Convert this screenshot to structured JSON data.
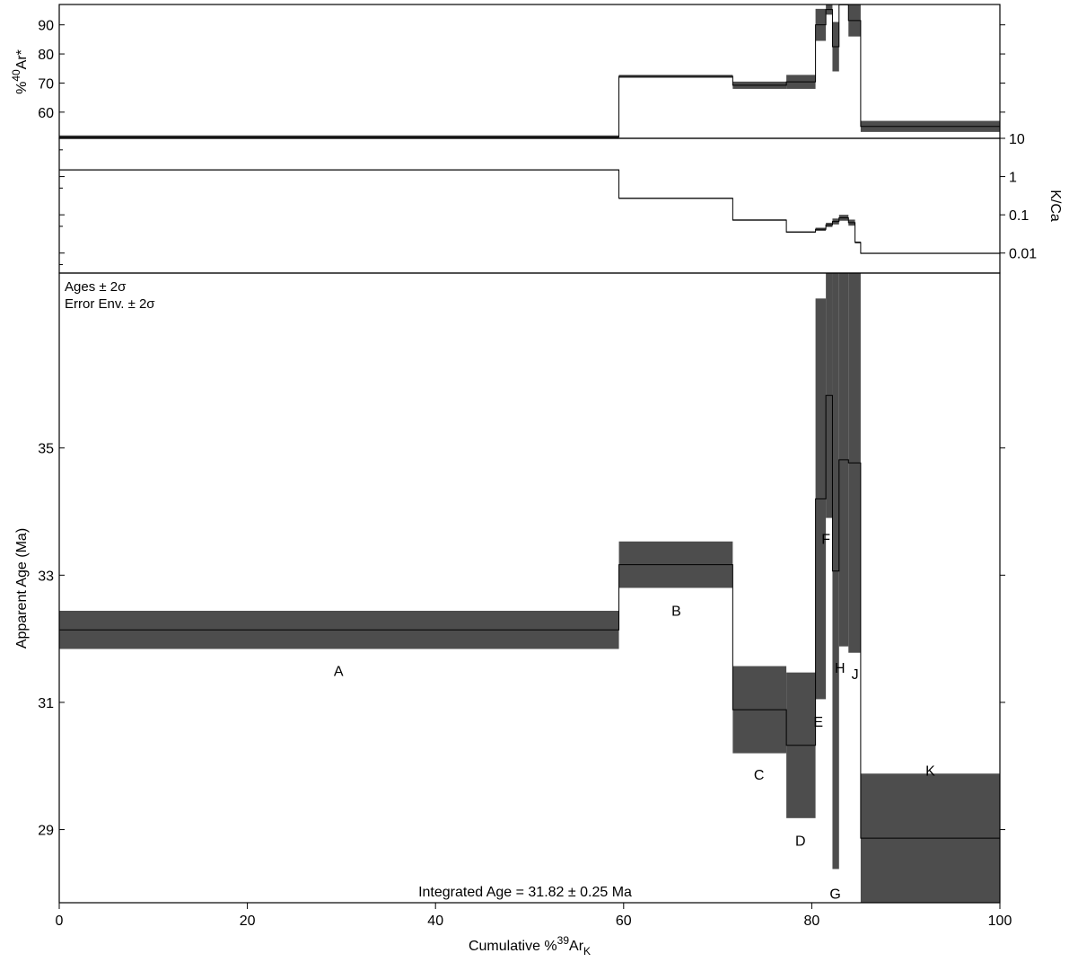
{
  "colors": {
    "band": "#4d4d4d",
    "line": "#000000",
    "background": "#ffffff"
  },
  "chart_data": [
    {
      "name": "radiogenic-argon-panel",
      "type": "step",
      "ylabel_prefix": "%",
      "ylabel_sup": "40",
      "ylabel_main": "Ar*",
      "ylim": [
        51.0,
        97.0
      ],
      "ytick_values": [
        60,
        70,
        80,
        90
      ],
      "ytick_labels": [
        "60",
        "70",
        "80",
        "90"
      ],
      "steps": [
        {
          "x0": 0.0,
          "x1": 59.5,
          "y0": 51.0,
          "y1": 52.0
        },
        {
          "x0": 59.5,
          "x1": 71.6,
          "y0": 71.8,
          "y1": 72.8
        },
        {
          "x0": 71.6,
          "x1": 77.3,
          "y0": 68.0,
          "y1": 70.5
        },
        {
          "x0": 77.3,
          "x1": 80.4,
          "y0": 68.0,
          "y1": 72.8
        },
        {
          "x0": 80.4,
          "x1": 81.5,
          "y0": 84.5,
          "y1": 95.5
        },
        {
          "x0": 81.5,
          "x1": 82.2,
          "y0": 93.5,
          "y1": 97.0
        },
        {
          "x0": 82.2,
          "x1": 82.9,
          "y0": 74.0,
          "y1": 91.0
        },
        {
          "x0": 82.9,
          "x1": 83.9,
          "y0": 97.0,
          "y1": 97.0
        },
        {
          "x0": 83.9,
          "x1": 85.2,
          "y0": 86.0,
          "y1": 97.0
        },
        {
          "x0": 85.2,
          "x1": 100.0,
          "y0": 53.2,
          "y1": 57.0
        }
      ]
    },
    {
      "name": "k-ca-panel",
      "type": "step",
      "ylabel": "K/Ca",
      "yscale": "log",
      "ylim": [
        0.003,
        10
      ],
      "ytick_values": [
        10,
        1,
        0.1,
        0.01
      ],
      "ytick_labels": [
        "10",
        "1",
        "0.1",
        "0.01"
      ],
      "steps": [
        {
          "x0": 0.0,
          "x1": 59.5,
          "y0": 1.45,
          "y1": 1.55
        },
        {
          "x0": 59.5,
          "x1": 71.6,
          "y0": 0.26,
          "y1": 0.28
        },
        {
          "x0": 71.6,
          "x1": 77.3,
          "y0": 0.07,
          "y1": 0.076
        },
        {
          "x0": 77.3,
          "x1": 80.4,
          "y0": 0.034,
          "y1": 0.037
        },
        {
          "x0": 80.4,
          "x1": 81.5,
          "y0": 0.038,
          "y1": 0.046
        },
        {
          "x0": 81.5,
          "x1": 82.2,
          "y0": 0.048,
          "y1": 0.062
        },
        {
          "x0": 82.2,
          "x1": 82.9,
          "y0": 0.056,
          "y1": 0.08
        },
        {
          "x0": 82.9,
          "x1": 83.9,
          "y0": 0.07,
          "y1": 0.1
        },
        {
          "x0": 83.9,
          "x1": 84.6,
          "y0": 0.052,
          "y1": 0.075
        },
        {
          "x0": 84.6,
          "x1": 85.2,
          "y0": 0.018,
          "y1": 0.02
        },
        {
          "x0": 85.2,
          "x1": 100.0,
          "y0": 0.0095,
          "y1": 0.0102
        }
      ]
    },
    {
      "name": "age-spectrum-panel",
      "type": "step",
      "title": "",
      "annotations": [
        "Ages ± 2σ",
        "Error Env. ± 2σ"
      ],
      "integrated_age": "Integrated Age = 31.82 ± 0.25 Ma",
      "xlabel_prefix": "Cumulative %",
      "xlabel_sup": "39",
      "xlabel_main": "Ar",
      "xlabel_sub": "K",
      "ylabel": "Apparent Age (Ma)",
      "xlim": [
        0,
        100
      ],
      "ylim": [
        27.85,
        37.75
      ],
      "xtick_values": [
        0,
        20,
        40,
        60,
        80,
        100
      ],
      "xtick_labels": [
        "0",
        "20",
        "40",
        "60",
        "80",
        "100"
      ],
      "ytick_values": [
        29,
        31,
        33,
        35
      ],
      "ytick_labels": [
        "29",
        "31",
        "33",
        "35"
      ],
      "steps": [
        {
          "label": "A",
          "x0": 0.0,
          "x1": 59.5,
          "y0": 31.84,
          "y1": 32.44,
          "label_x": 29.7,
          "label_y": 31.5
        },
        {
          "label": "B",
          "x0": 59.5,
          "x1": 71.6,
          "y0": 32.8,
          "y1": 33.53,
          "label_x": 65.6,
          "label_y": 32.45
        },
        {
          "label": "C",
          "x0": 71.6,
          "x1": 77.3,
          "y0": 30.2,
          "y1": 31.57,
          "label_x": 74.4,
          "label_y": 29.87
        },
        {
          "label": "D",
          "x0": 77.3,
          "x1": 80.4,
          "y0": 29.18,
          "y1": 31.47,
          "label_x": 78.8,
          "label_y": 28.83
        },
        {
          "label": "E",
          "x0": 80.4,
          "x1": 81.5,
          "y0": 31.05,
          "y1": 37.35,
          "label_x": 80.7,
          "label_y": 30.7
        },
        {
          "label": "F",
          "x0": 81.5,
          "x1": 82.2,
          "y0": 33.9,
          "y1": 37.75,
          "label_x": 81.5,
          "label_y": 33.58
        },
        {
          "label": "G",
          "x0": 82.2,
          "x1": 82.9,
          "y0": 28.38,
          "y1": 37.75,
          "label_x": 82.5,
          "label_y": 28.0
        },
        {
          "label": "H",
          "x0": 82.9,
          "x1": 83.9,
          "y0": 31.88,
          "y1": 37.75,
          "label_x": 83.0,
          "label_y": 31.55
        },
        {
          "label": "J",
          "x0": 83.9,
          "x1": 85.2,
          "y0": 31.78,
          "y1": 37.75,
          "label_x": 84.6,
          "label_y": 31.45
        },
        {
          "label": "K",
          "x0": 85.2,
          "x1": 100.0,
          "y0": 27.85,
          "y1": 29.88,
          "label_x": 92.6,
          "label_y": 29.93
        }
      ]
    }
  ]
}
